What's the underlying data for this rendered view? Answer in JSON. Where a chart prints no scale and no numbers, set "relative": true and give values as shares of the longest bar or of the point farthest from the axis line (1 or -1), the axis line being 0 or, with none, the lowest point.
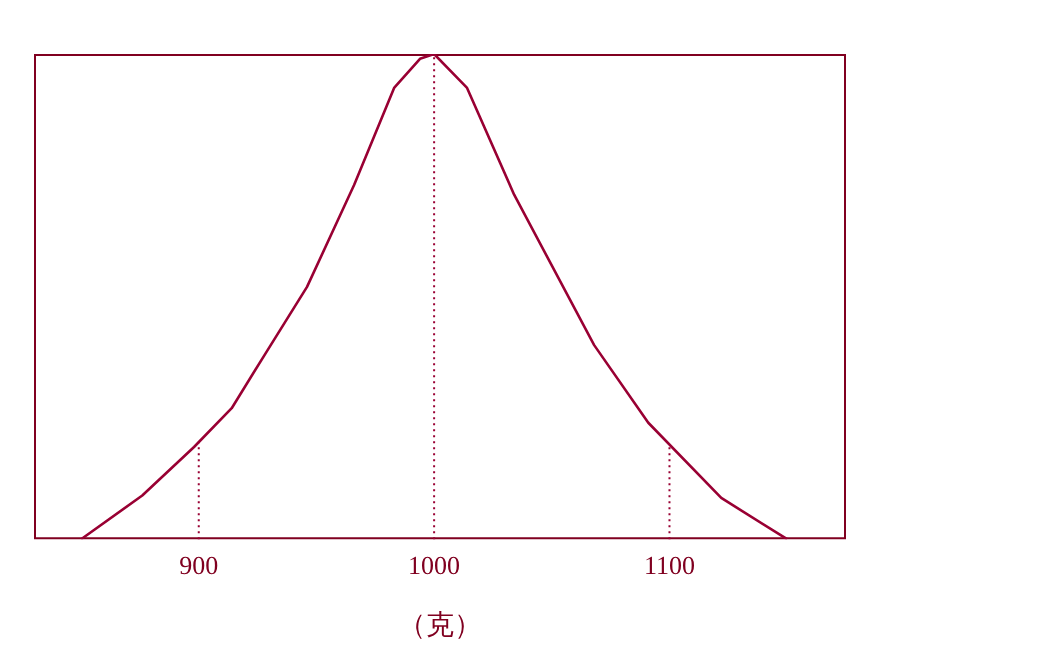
{
  "chart_data": {
    "type": "line",
    "relative": true,
    "xlabel": "（克）",
    "xlim": [
      830,
      1175
    ],
    "xticks": [
      900,
      1000,
      1100
    ],
    "grid": false,
    "legend": false,
    "marker": "none",
    "line_style": "solid",
    "series": [
      {
        "color": "#990033",
        "x": [
          850,
          876,
          898,
          914,
          928,
          946,
          966,
          983,
          994,
          1000,
          1014,
          1034,
          1068,
          1091,
          1122,
          1150
        ],
        "values": [
          0,
          0.09,
          0.19,
          0.27,
          0.38,
          0.52,
          0.73,
          0.93,
          0.99,
          1,
          0.93,
          0.71,
          0.4,
          0.24,
          0.085,
          0
        ]
      }
    ],
    "ref_lines": [
      {
        "axis": "x",
        "value": 900,
        "line_style": "dotted"
      },
      {
        "axis": "x",
        "value": 1000,
        "line_style": "dotted"
      },
      {
        "axis": "x",
        "value": 1100,
        "line_style": "dotted"
      }
    ]
  }
}
